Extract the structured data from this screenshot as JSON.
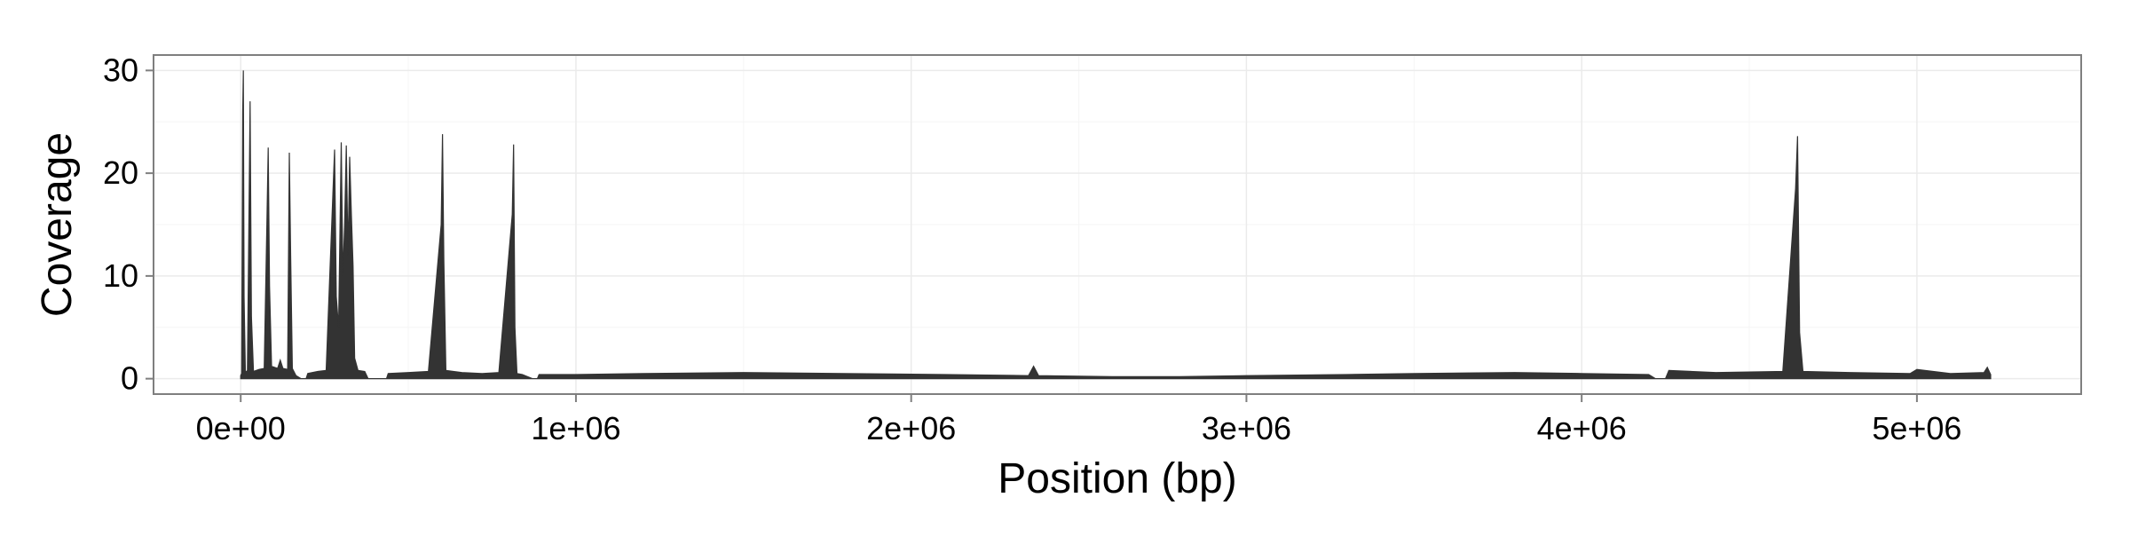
{
  "chart_data": {
    "type": "area",
    "title": "",
    "xlabel": "Position (bp)",
    "ylabel": "Coverage",
    "xlim": [
      -260000,
      5490000
    ],
    "ylim": [
      -1.5,
      31.5
    ],
    "x_ticks": [
      0,
      1000000,
      2000000,
      3000000,
      4000000,
      5000000
    ],
    "x_tick_labels": [
      "0e+00",
      "1e+06",
      "2e+06",
      "3e+06",
      "4e+06",
      "5e+06"
    ],
    "y_ticks": [
      0,
      10,
      20,
      30
    ],
    "y_tick_labels": [
      "0",
      "10",
      "20",
      "30"
    ],
    "grid": true,
    "legend": "none",
    "colors": {
      "panel_background": "#ffffff",
      "grid": "#ebebeb",
      "border": "#7f7f7f",
      "line": "#333333"
    },
    "series": [
      {
        "points": [
          [
            0,
            0.3
          ],
          [
            3000,
            0.5
          ],
          [
            6000,
            26
          ],
          [
            8000,
            30
          ],
          [
            10000,
            8
          ],
          [
            14000,
            0.6
          ],
          [
            20000,
            0.8
          ],
          [
            28000,
            27
          ],
          [
            32000,
            6
          ],
          [
            38000,
            0.7
          ],
          [
            55000,
            0.9
          ],
          [
            70000,
            1.0
          ],
          [
            78000,
            15
          ],
          [
            82000,
            22.5
          ],
          [
            86000,
            9
          ],
          [
            92000,
            1.2
          ],
          [
            110000,
            1.0
          ],
          [
            118000,
            1.8
          ],
          [
            126000,
            1.0
          ],
          [
            140000,
            0.9
          ],
          [
            145000,
            22
          ],
          [
            149000,
            12
          ],
          [
            154000,
            1.0
          ],
          [
            165000,
            0.3
          ],
          [
            180000,
            0
          ],
          [
            195000,
            0
          ],
          [
            200000,
            0.5
          ],
          [
            230000,
            0.7
          ],
          [
            255000,
            0.8
          ],
          [
            275000,
            18
          ],
          [
            280000,
            22.3
          ],
          [
            285000,
            8
          ],
          [
            292000,
            5
          ],
          [
            300000,
            23
          ],
          [
            305000,
            10
          ],
          [
            310000,
            15
          ],
          [
            315000,
            22.7
          ],
          [
            320000,
            12
          ],
          [
            325000,
            21.6
          ],
          [
            330000,
            16
          ],
          [
            335000,
            11
          ],
          [
            340000,
            2
          ],
          [
            350000,
            0.8
          ],
          [
            370000,
            0.7
          ],
          [
            380000,
            0
          ],
          [
            435000,
            0
          ],
          [
            440000,
            0.5
          ],
          [
            500000,
            0.6
          ],
          [
            560000,
            0.7
          ],
          [
            598000,
            15
          ],
          [
            602000,
            23.8
          ],
          [
            606000,
            11.5
          ],
          [
            612000,
            0.8
          ],
          [
            660000,
            0.6
          ],
          [
            720000,
            0.5
          ],
          [
            770000,
            0.6
          ],
          [
            810000,
            16
          ],
          [
            814000,
            22.8
          ],
          [
            818000,
            5
          ],
          [
            824000,
            0.5
          ],
          [
            840000,
            0.4
          ],
          [
            870000,
            0
          ],
          [
            885000,
            0
          ],
          [
            890000,
            0.4
          ],
          [
            1000000,
            0.4
          ],
          [
            1200000,
            0.5
          ],
          [
            1500000,
            0.6
          ],
          [
            1800000,
            0.5
          ],
          [
            2100000,
            0.4
          ],
          [
            2350000,
            0.3
          ],
          [
            2365000,
            1.2
          ],
          [
            2380000,
            0.3
          ],
          [
            2600000,
            0.2
          ],
          [
            2800000,
            0.2
          ],
          [
            3000000,
            0.3
          ],
          [
            3300000,
            0.4
          ],
          [
            3500000,
            0.5
          ],
          [
            3800000,
            0.6
          ],
          [
            4000000,
            0.5
          ],
          [
            4200000,
            0.4
          ],
          [
            4220000,
            0
          ],
          [
            4250000,
            0
          ],
          [
            4260000,
            0.8
          ],
          [
            4400000,
            0.6
          ],
          [
            4600000,
            0.7
          ],
          [
            4638000,
            18.5
          ],
          [
            4644000,
            23.6
          ],
          [
            4650000,
            4.5
          ],
          [
            4660000,
            0.7
          ],
          [
            4800000,
            0.6
          ],
          [
            4980000,
            0.5
          ],
          [
            5000000,
            0.9
          ],
          [
            5100000,
            0.5
          ],
          [
            5200000,
            0.6
          ],
          [
            5210000,
            1.1
          ],
          [
            5220000,
            0.4
          ]
        ]
      }
    ]
  }
}
